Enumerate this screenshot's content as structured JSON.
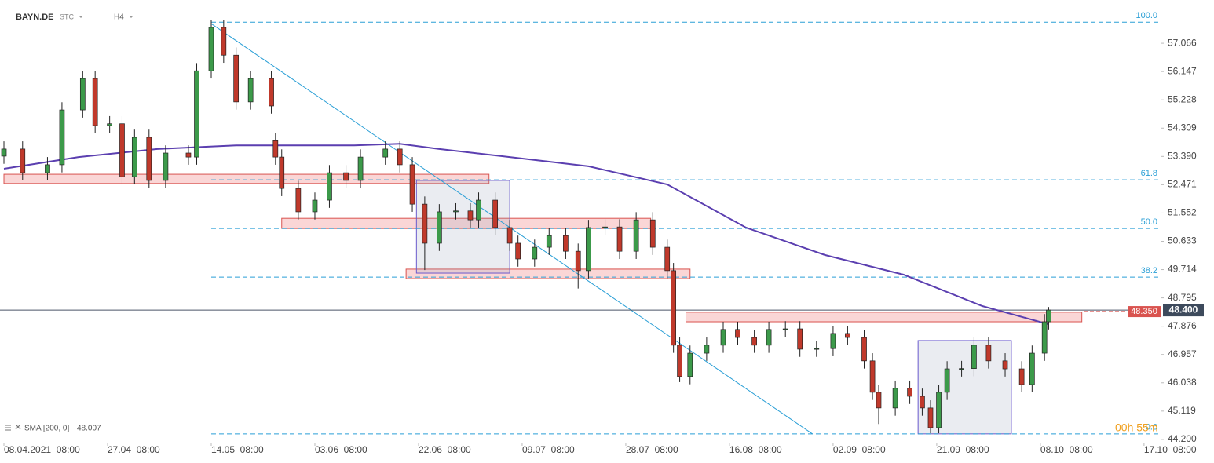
{
  "chart_data": {
    "type": "candlestick",
    "symbol": "BAYN.DE",
    "price_type": "STC",
    "timeframe": "H4",
    "up_color": "#3c9a4a",
    "down_color": "#c0392b",
    "xlim": [
      -1.9,
      558
    ],
    "ylim": [
      44.07,
      58.47
    ],
    "xticks": [
      {
        "value": 0,
        "label": "08.04.2021  08:00"
      },
      {
        "value": 50,
        "label": "27.04  08:00"
      },
      {
        "value": 100,
        "label": "14.05  08:00"
      },
      {
        "value": 150,
        "label": "03.06  08:00"
      },
      {
        "value": 200,
        "label": "22.06  08:00"
      },
      {
        "value": 250,
        "label": "09.07  08:00"
      },
      {
        "value": 300,
        "label": "28.07  08:00"
      },
      {
        "value": 350,
        "label": "16.08  08:00"
      },
      {
        "value": 400,
        "label": "02.09  08:00"
      },
      {
        "value": 450,
        "label": "21.09  08:00"
      },
      {
        "value": 500,
        "label": "08.10  08:00"
      },
      {
        "value": 550,
        "label": "17.10  08:00"
      }
    ],
    "yticks": [
      57.066,
      56.147,
      55.228,
      54.309,
      {
        "value": 53.39,
        "label": "53.390"
      },
      52.471,
      51.552,
      50.633,
      49.714,
      48.795,
      47.876,
      46.957,
      46.038,
      45.119,
      {
        "value": 44.2,
        "label": "44.200"
      }
    ],
    "x": [
      0,
      9,
      21,
      28,
      38,
      44,
      51,
      57,
      63,
      70,
      78,
      89,
      93,
      100,
      106,
      112,
      119,
      129,
      131,
      134,
      142,
      150,
      157,
      165,
      172,
      184,
      191,
      197,
      203,
      210,
      218,
      225,
      229,
      237,
      244,
      248,
      256,
      263,
      271,
      277,
      282,
      290,
      297,
      305,
      313,
      320,
      323,
      326,
      331,
      339,
      347,
      354,
      362,
      369,
      377,
      384,
      392,
      400,
      407,
      415,
      419,
      422,
      430,
      437,
      443,
      447,
      451,
      455,
      462,
      468,
      475,
      483,
      491,
      496,
      502,
      504
    ],
    "open": [
      53.4,
      53.63,
      52.86,
      53.12,
      54.9,
      55.92,
      54.39,
      54.45,
      52.73,
      54.01,
      52.61,
      53.5,
      53.37,
      56.17,
      57.58,
      56.68,
      55.16,
      55.92,
      53.9,
      53.37,
      52.35,
      51.59,
      51.97,
      52.86,
      52.61,
      53.37,
      53.63,
      53.12,
      51.84,
      50.57,
      51.59,
      51.62,
      51.33,
      51.97,
      51.08,
      50.57,
      50.06,
      50.44,
      50.82,
      50.31,
      49.68,
      51.08,
      51.1,
      50.31,
      51.33,
      50.44,
      49.68,
      47.26,
      46.24,
      47.0,
      47.26,
      47.77,
      47.51,
      47.26,
      47.77,
      47.79,
      47.13,
      47.15,
      47.64,
      47.51,
      46.75,
      45.73,
      45.22,
      45.86,
      45.6,
      45.22,
      44.58,
      45.73,
      46.49,
      46.5,
      47.26,
      46.75,
      46.49,
      45.98,
      47.0,
      48.02
    ],
    "high": [
      53.88,
      53.88,
      53.37,
      55.15,
      56.17,
      56.17,
      54.7,
      54.7,
      54.26,
      54.26,
      53.75,
      53.75,
      56.42,
      57.83,
      57.83,
      56.93,
      56.17,
      56.17,
      54.15,
      53.62,
      52.6,
      52.22,
      53.11,
      53.11,
      53.62,
      53.88,
      53.88,
      53.37,
      52.09,
      51.84,
      51.87,
      51.87,
      52.22,
      52.22,
      51.33,
      50.82,
      50.69,
      51.07,
      51.07,
      50.56,
      51.33,
      51.35,
      51.35,
      51.58,
      51.58,
      50.69,
      49.93,
      47.51,
      47.25,
      47.51,
      48.02,
      48.02,
      47.76,
      48.02,
      48.04,
      48.04,
      47.4,
      47.89,
      47.89,
      47.76,
      47.0,
      45.98,
      46.11,
      46.11,
      45.85,
      45.47,
      45.98,
      46.74,
      46.75,
      47.51,
      47.51,
      47.0,
      46.74,
      47.25,
      48.27,
      48.5
    ],
    "low": [
      53.15,
      52.61,
      52.61,
      52.87,
      54.65,
      54.14,
      54.14,
      52.48,
      52.48,
      52.36,
      52.36,
      53.12,
      53.12,
      55.92,
      56.43,
      54.91,
      54.91,
      54.78,
      53.12,
      52.1,
      51.34,
      51.34,
      51.72,
      52.36,
      52.36,
      53.12,
      52.87,
      51.59,
      49.7,
      50.32,
      51.34,
      51.08,
      51.08,
      50.83,
      50.32,
      49.81,
      49.81,
      50.19,
      50.06,
      49.1,
      49.43,
      50.83,
      50.06,
      50.06,
      50.19,
      49.43,
      47.01,
      46.06,
      45.99,
      46.75,
      47.01,
      47.26,
      47.01,
      47.01,
      47.52,
      46.88,
      46.88,
      46.9,
      47.26,
      46.5,
      45.48,
      44.7,
      44.97,
      45.35,
      44.97,
      44.4,
      44.4,
      45.48,
      46.24,
      46.25,
      46.5,
      46.24,
      45.73,
      45.73,
      46.75,
      47.77
    ],
    "close": [
      53.63,
      52.86,
      53.12,
      54.9,
      55.92,
      54.39,
      54.45,
      52.73,
      54.01,
      52.61,
      53.5,
      53.37,
      56.17,
      57.58,
      56.68,
      55.16,
      55.92,
      55.03,
      53.37,
      52.35,
      51.59,
      51.97,
      52.86,
      52.61,
      53.37,
      53.63,
      53.12,
      51.84,
      50.57,
      51.59,
      51.62,
      51.33,
      51.97,
      51.08,
      50.57,
      50.06,
      50.44,
      50.82,
      50.31,
      49.68,
      51.08,
      51.1,
      50.31,
      51.33,
      50.44,
      49.68,
      47.26,
      46.24,
      47.0,
      47.26,
      47.77,
      47.51,
      47.26,
      47.77,
      47.79,
      47.13,
      47.15,
      47.64,
      47.51,
      46.75,
      45.73,
      45.22,
      45.86,
      45.6,
      45.22,
      44.58,
      45.73,
      46.49,
      46.5,
      47.26,
      46.75,
      46.49,
      45.98,
      47.0,
      48.02,
      48.4
    ],
    "sma": {
      "name": "SMA [200, 0]",
      "value": 48.007,
      "color": "#5b3fb0",
      "x": [
        0,
        36,
        74,
        112,
        131,
        169,
        191,
        210,
        244,
        282,
        320,
        358,
        396,
        434,
        472,
        504
      ],
      "values": [
        52.99,
        53.37,
        53.63,
        53.75,
        53.75,
        53.75,
        53.8,
        53.63,
        53.37,
        53.07,
        52.48,
        51.08,
        50.19,
        49.55,
        48.53,
        47.94
      ]
    },
    "fib": {
      "color": "#2a9fd6",
      "x_start": 100,
      "levels": [
        {
          "ratio": {
            "value": 100,
            "label": "100.0"
          },
          "price": 57.75
        },
        {
          "ratio": 61.8,
          "price": 52.63
        },
        {
          "ratio": {
            "value": 50,
            "label": "50.0"
          },
          "price": 51.05
        },
        {
          "ratio": 38.2,
          "price": 49.47
        },
        {
          "ratio": {
            "value": 0,
            "label": "0.0"
          },
          "price": 44.38
        }
      ]
    },
    "trendline": {
      "color": "#2a9fd6",
      "x": [
        100,
        390
      ],
      "y": [
        57.7,
        44.38
      ]
    },
    "zones": [
      {
        "x": [
          0,
          234
        ],
        "y": [
          52.51,
          52.81
        ]
      },
      {
        "x": [
          134,
          312
        ],
        "y": [
          51.05,
          51.38
        ]
      },
      {
        "x": [
          194,
          331
        ],
        "y": [
          49.42,
          49.73
        ]
      },
      {
        "x": [
          329,
          520
        ],
        "y": [
          48.02,
          48.33
        ]
      }
    ],
    "boxes": [
      {
        "x": [
          199,
          244
        ],
        "y": [
          49.6,
          52.61
        ]
      },
      {
        "x": [
          441,
          486
        ],
        "y": [
          44.38,
          47.41
        ]
      }
    ],
    "last_price": {
      "value": 48.4,
      "label": "48.400"
    },
    "bid_price": {
      "value": 48.35,
      "label": "48.350"
    },
    "countdown": "00h 55m"
  }
}
